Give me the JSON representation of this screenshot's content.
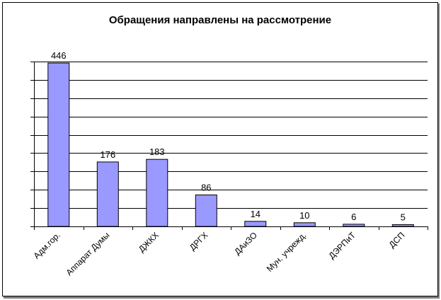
{
  "chart_data": {
    "type": "bar",
    "title": "Обращения направлены на рассмотрение",
    "categories": [
      "Адм.гор.",
      "Аппарат Думы",
      "ДЖКХ",
      "ДРГХ",
      "ДАиЗО",
      "Мун. учрежд.",
      "ДЭРПиТ",
      "ДСП"
    ],
    "values": [
      446,
      176,
      183,
      86,
      14,
      10,
      6,
      5
    ],
    "ylim": [
      0,
      450
    ],
    "grid": true,
    "legend": "none"
  },
  "colors": {
    "bar": "#9999FF",
    "bar_outline": "#000000",
    "grid": "#000000",
    "axis": "#000000",
    "background": "#FFFFFF"
  }
}
